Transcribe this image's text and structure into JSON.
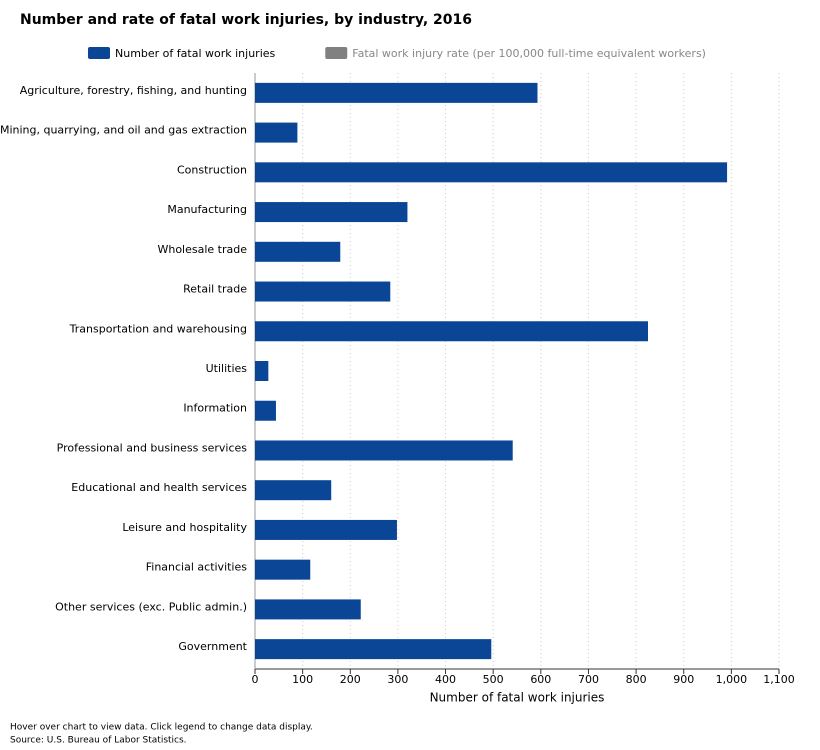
{
  "chart_data": {
    "type": "bar",
    "orientation": "horizontal",
    "title": "Number and rate of fatal work injuries, by industry, 2016",
    "categories": [
      "Agriculture, forestry, fishing, and hunting",
      "Mining, quarrying, and oil and gas extraction",
      "Construction",
      "Manufacturing",
      "Wholesale trade",
      "Retail trade",
      "Transportation and warehousing",
      "Utilities",
      "Information",
      "Professional and business services",
      "Educational and health services",
      "Leisure and hospitality",
      "Financial activities",
      "Other services (exc. Public admin.)",
      "Government"
    ],
    "series": [
      {
        "name": "Number of fatal work injuries",
        "color": "#0b4596",
        "values": [
          593,
          89,
          991,
          320,
          179,
          284,
          825,
          28,
          44,
          541,
          160,
          298,
          116,
          222,
          496
        ]
      },
      {
        "name": "Fatal work injury rate (per 100,000 full-time equivalent workers)",
        "color": "#808080",
        "visible": false
      }
    ],
    "xlabel": "Number of fatal work injuries",
    "xlim": [
      0,
      1100
    ],
    "xticks": [
      0,
      100,
      200,
      300,
      400,
      500,
      600,
      700,
      800,
      900,
      {
        "value": 1000,
        "label": "1,000"
      },
      {
        "value": 1100,
        "label": "1,100"
      }
    ],
    "grid": true,
    "legend": "top",
    "notes": [
      "Hover over chart to view data. Click legend to change data display.",
      "Source: U.S. Bureau of Labor Statistics."
    ]
  }
}
